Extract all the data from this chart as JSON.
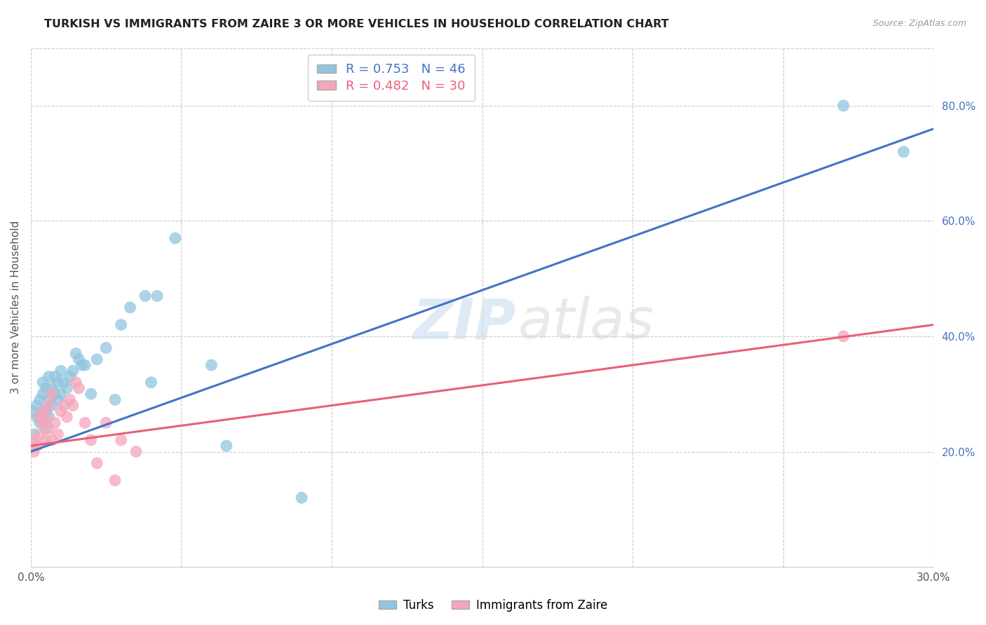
{
  "title": "TURKISH VS IMMIGRANTS FROM ZAIRE 3 OR MORE VEHICLES IN HOUSEHOLD CORRELATION CHART",
  "source": "Source: ZipAtlas.com",
  "ylabel": "3 or more Vehicles in Household",
  "xlim": [
    0.0,
    0.3
  ],
  "ylim": [
    0.0,
    0.9
  ],
  "x_ticks": [
    0.0,
    0.05,
    0.1,
    0.15,
    0.2,
    0.25,
    0.3
  ],
  "x_tick_labels": [
    "0.0%",
    "",
    "",
    "",
    "",
    "",
    "30.0%"
  ],
  "y_ticks_right": [
    0.2,
    0.4,
    0.6,
    0.8
  ],
  "y_tick_labels_right": [
    "20.0%",
    "40.0%",
    "60.0%",
    "80.0%"
  ],
  "blue_R": "0.753",
  "blue_N": "46",
  "pink_R": "0.482",
  "pink_N": "30",
  "blue_color": "#92C5DE",
  "pink_color": "#F4A6BA",
  "blue_line_color": "#4472C4",
  "pink_line_color": "#E8607A",
  "legend_label_blue": "Turks",
  "legend_label_pink": "Immigrants from Zaire",
  "blue_points_x": [
    0.001,
    0.001,
    0.002,
    0.002,
    0.003,
    0.003,
    0.004,
    0.004,
    0.004,
    0.005,
    0.005,
    0.005,
    0.006,
    0.006,
    0.006,
    0.007,
    0.007,
    0.008,
    0.008,
    0.009,
    0.009,
    0.01,
    0.01,
    0.011,
    0.012,
    0.013,
    0.014,
    0.015,
    0.016,
    0.017,
    0.018,
    0.02,
    0.022,
    0.025,
    0.028,
    0.03,
    0.033,
    0.038,
    0.04,
    0.042,
    0.048,
    0.06,
    0.065,
    0.09,
    0.27,
    0.29
  ],
  "blue_points_y": [
    0.23,
    0.27,
    0.26,
    0.28,
    0.25,
    0.29,
    0.27,
    0.3,
    0.32,
    0.24,
    0.27,
    0.31,
    0.26,
    0.29,
    0.33,
    0.28,
    0.31,
    0.3,
    0.33,
    0.29,
    0.32,
    0.3,
    0.34,
    0.32,
    0.31,
    0.33,
    0.34,
    0.37,
    0.36,
    0.35,
    0.35,
    0.3,
    0.36,
    0.38,
    0.29,
    0.42,
    0.45,
    0.47,
    0.32,
    0.47,
    0.57,
    0.35,
    0.21,
    0.12,
    0.8,
    0.72
  ],
  "pink_points_x": [
    0.001,
    0.001,
    0.002,
    0.003,
    0.003,
    0.004,
    0.004,
    0.005,
    0.005,
    0.006,
    0.006,
    0.007,
    0.007,
    0.008,
    0.009,
    0.01,
    0.011,
    0.012,
    0.013,
    0.014,
    0.015,
    0.016,
    0.018,
    0.02,
    0.022,
    0.025,
    0.028,
    0.03,
    0.035,
    0.27
  ],
  "pink_points_y": [
    0.2,
    0.22,
    0.21,
    0.23,
    0.26,
    0.25,
    0.27,
    0.22,
    0.26,
    0.28,
    0.24,
    0.3,
    0.22,
    0.25,
    0.23,
    0.27,
    0.28,
    0.26,
    0.29,
    0.28,
    0.32,
    0.31,
    0.25,
    0.22,
    0.18,
    0.25,
    0.15,
    0.22,
    0.2,
    0.4
  ],
  "blue_line_x": [
    0.0,
    0.3
  ],
  "blue_line_y": [
    0.2,
    0.76
  ],
  "pink_line_x": [
    0.0,
    0.3
  ],
  "pink_line_y": [
    0.21,
    0.42
  ]
}
